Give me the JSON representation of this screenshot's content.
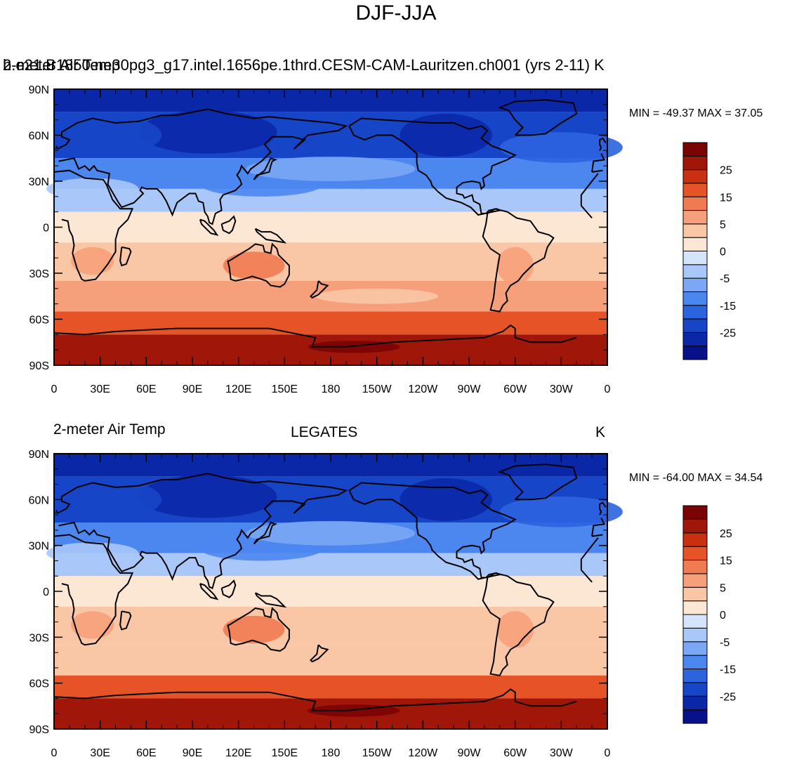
{
  "figure": {
    "title": "DJF-JJA"
  },
  "panels": [
    {
      "id": "top",
      "left_string": "2-meter Air Temp",
      "center_string": "b.e21.B1850.ne30pg3_g17.intel.1656pe.1thrd.CESM-CAM-Lauritzen.ch001 (yrs 2-11)",
      "right_string": "K",
      "minmax_text": "MIN = -49.37 MAX =  37.05"
    },
    {
      "id": "bottom",
      "left_string": "2-meter Air Temp",
      "center_string": "LEGATES",
      "right_string": "K",
      "minmax_text": "MIN = -64.00 MAX =  34.54"
    }
  ],
  "axes": {
    "lat_labels": [
      "90N",
      "60N",
      "30N",
      "0",
      "30S",
      "60S",
      "90S"
    ],
    "lon_labels": [
      "0",
      "30E",
      "60E",
      "90E",
      "120E",
      "150E",
      "180",
      "150W",
      "120W",
      "90W",
      "60W",
      "30W",
      "0"
    ]
  },
  "colorbar": {
    "bin_colors": [
      "#08108a",
      "#0a27a8",
      "#1646c7",
      "#2c63df",
      "#4c86ef",
      "#7ba7f4",
      "#a9c7f8",
      "#d3e4fb",
      "#fbe7d3",
      "#f9c7a6",
      "#f6a07b",
      "#f07a51",
      "#e55327",
      "#c9300f",
      "#a01608",
      "#7a0303"
    ],
    "tick_labels": [
      "25",
      "15",
      "5",
      "0",
      "-5",
      "-15",
      "-25"
    ]
  },
  "chart_data": [
    {
      "type": "heatmap",
      "title": "2-meter Air Temp — b.e21.B1850.ne30pg3_g17.intel.1656pe.1thrd.CESM-CAM-Lauritzen.ch001 (yrs 2-11)",
      "variable": "DJF-JJA 2-meter Air Temp",
      "units": "K",
      "x_axis": "longitude 0 to 360 (0, 30E ... 30W, 0)",
      "y_axis": "latitude 90S to 90N",
      "zonal_bands": [
        {
          "lat_range": [
            75,
            90
          ],
          "value": -30
        },
        {
          "lat_range": [
            45,
            75
          ],
          "value": -22
        },
        {
          "lat_range": [
            25,
            45
          ],
          "value": -12
        },
        {
          "lat_range": [
            10,
            25
          ],
          "value": -3
        },
        {
          "lat_range": [
            -10,
            10
          ],
          "value": 1
        },
        {
          "lat_range": [
            -35,
            -10
          ],
          "value": 4
        },
        {
          "lat_range": [
            -55,
            -35
          ],
          "value": 5
        },
        {
          "lat_range": [
            -70,
            -55
          ],
          "value": 15
        },
        {
          "lat_range": [
            -90,
            -70
          ],
          "value": 27
        }
      ],
      "min": -49.37,
      "max": 37.05
    },
    {
      "type": "heatmap",
      "title": "2-meter Air Temp — LEGATES",
      "variable": "DJF-JJA 2-meter Air Temp",
      "units": "K",
      "x_axis": "longitude 0 to 360 (0, 30E ... 30W, 0)",
      "y_axis": "latitude 90S to 90N",
      "zonal_bands": [
        {
          "lat_range": [
            75,
            90
          ],
          "value": -30
        },
        {
          "lat_range": [
            45,
            75
          ],
          "value": -23
        },
        {
          "lat_range": [
            25,
            45
          ],
          "value": -12
        },
        {
          "lat_range": [
            10,
            25
          ],
          "value": -4
        },
        {
          "lat_range": [
            -10,
            10
          ],
          "value": 1
        },
        {
          "lat_range": [
            -35,
            -10
          ],
          "value": 4
        },
        {
          "lat_range": [
            -55,
            -35
          ],
          "value": 4
        },
        {
          "lat_range": [
            -70,
            -55
          ],
          "value": 17
        },
        {
          "lat_range": [
            -90,
            -70
          ],
          "value": 28
        }
      ],
      "min": -64.0,
      "max": 34.54
    }
  ]
}
